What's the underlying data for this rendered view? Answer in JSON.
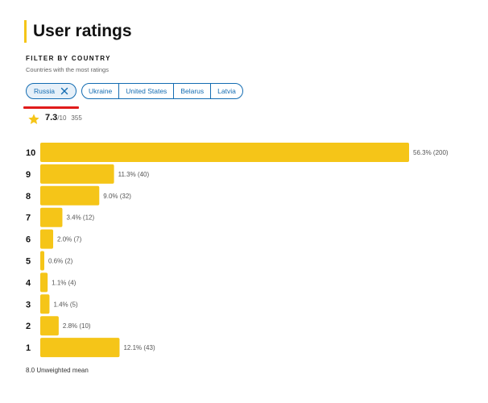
{
  "header": {
    "title": "User ratings"
  },
  "filter": {
    "label": "FILTER BY COUNTRY",
    "sublabel": "Countries with the most ratings",
    "selected": "Russia",
    "options": [
      "Ukraine",
      "United States",
      "Belarus",
      "Latvia"
    ]
  },
  "rating": {
    "value": "7.3",
    "max": "/10",
    "count": "355"
  },
  "footer": {
    "text": "8.0 Unweighted mean"
  },
  "colors": {
    "bar": "#f5c518",
    "accent": "#136cb2",
    "underline": "#e01b1b"
  },
  "chart_data": {
    "type": "bar",
    "orientation": "horizontal",
    "categories": [
      "10",
      "9",
      "8",
      "7",
      "6",
      "5",
      "4",
      "3",
      "2",
      "1"
    ],
    "values": [
      200,
      40,
      32,
      12,
      7,
      2,
      4,
      5,
      10,
      43
    ],
    "labels": [
      "56.3% (200)",
      "11.3% (40)",
      "9.0% (32)",
      "3.4% (12)",
      "2.0% (7)",
      "0.6% (2)",
      "1.1% (4)",
      "1.4% (5)",
      "2.8% (10)",
      "12.1% (43)"
    ]
  }
}
